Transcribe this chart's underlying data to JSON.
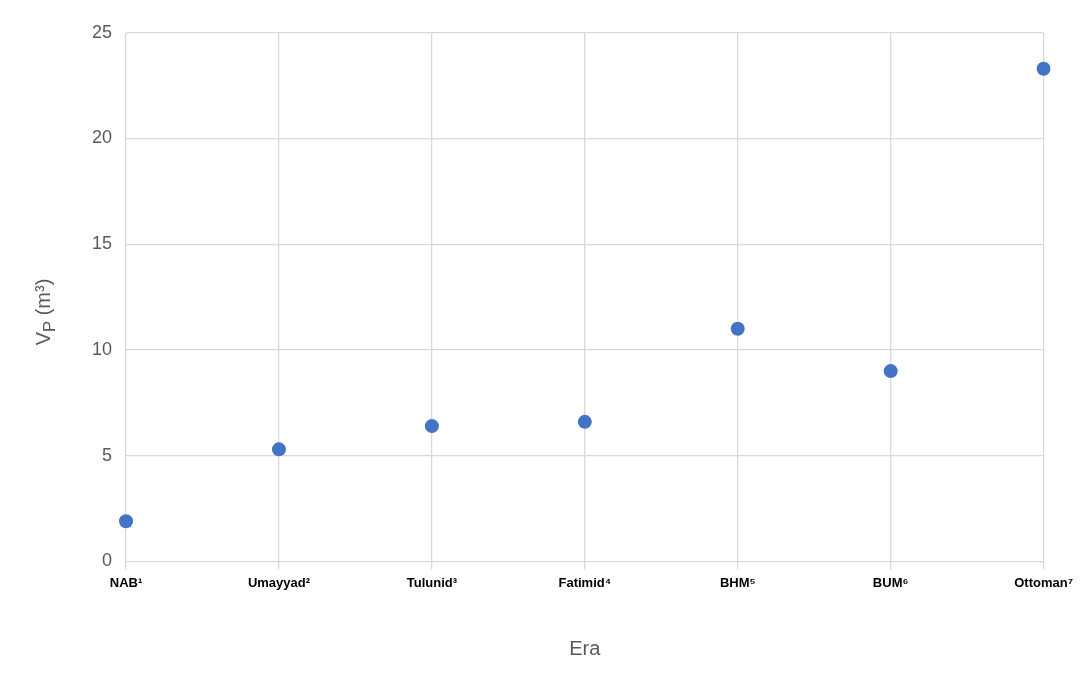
{
  "chart_data": {
    "type": "scatter",
    "xlabel": "Era",
    "ylabel": "V$_{P}$ (m³)",
    "categories": [
      "NAB¹",
      "Umayyad²",
      "Tulunid³",
      "Fatimid⁴",
      "BHM⁵",
      "BUM⁶",
      "Ottoman⁷"
    ],
    "values": [
      1.9,
      5.3,
      6.4,
      6.6,
      11.0,
      9.0,
      23.3
    ],
    "color": "#4472c4",
    "marker": "circle",
    "ylim": [
      0,
      25
    ],
    "yticks": [
      0,
      5,
      10,
      15,
      20,
      25
    ],
    "grid": true,
    "legend": false
  }
}
